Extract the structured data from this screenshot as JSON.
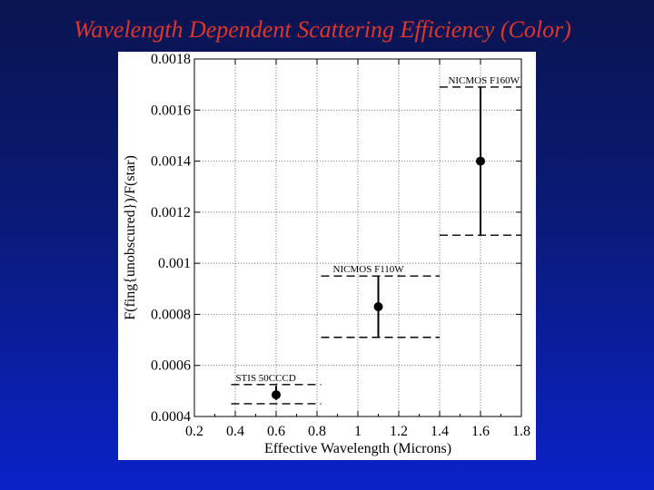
{
  "slide": {
    "title": "Wavelength Dependent Scattering Efficiency (Color)",
    "title_color": "#e0352b"
  },
  "chart_data": {
    "type": "scatter",
    "title": "",
    "xlabel": "Effective Wavelength (Microns)",
    "ylabel": "F(fing{unobscured})/F(star)",
    "xlim": [
      0.2,
      1.8
    ],
    "ylim": [
      0.0004,
      0.0018
    ],
    "xticks": [
      0.2,
      0.4,
      0.6,
      0.8,
      1.0,
      1.2,
      1.4,
      1.6,
      1.8
    ],
    "xtick_labels": [
      "0.2",
      "0.4",
      "0.6",
      "0.8",
      "1",
      "1.2",
      "1.4",
      "1.6",
      "1.8"
    ],
    "yticks": [
      0.0004,
      0.0006,
      0.0008,
      0.001,
      0.0012,
      0.0014,
      0.0016,
      0.0018
    ],
    "ytick_labels": [
      "0.0004",
      "0.0006",
      "0.0008",
      "0.001",
      "0.0012",
      "0.0014",
      "0.0016",
      "0.0018"
    ],
    "grid": true,
    "points": [
      {
        "label": "STIS 50CCCD",
        "x": 0.6,
        "y": 0.000485,
        "err_low": 0.000465,
        "err_high": 0.00052,
        "band_low": 0.00045,
        "band_high": 0.000525,
        "band_x": [
          0.38,
          0.82
        ]
      },
      {
        "label": "NICMOS F110W",
        "x": 1.1,
        "y": 0.00083,
        "err_low": 0.00071,
        "err_high": 0.00095,
        "band_low": 0.00071,
        "band_high": 0.00095,
        "band_x": [
          0.82,
          1.4
        ]
      },
      {
        "label": "NICMOS F160W",
        "x": 1.6,
        "y": 0.0014,
        "err_low": 0.00111,
        "err_high": 0.00169,
        "band_low": 0.00111,
        "band_high": 0.00169,
        "band_x": [
          1.4,
          1.8
        ]
      }
    ]
  }
}
